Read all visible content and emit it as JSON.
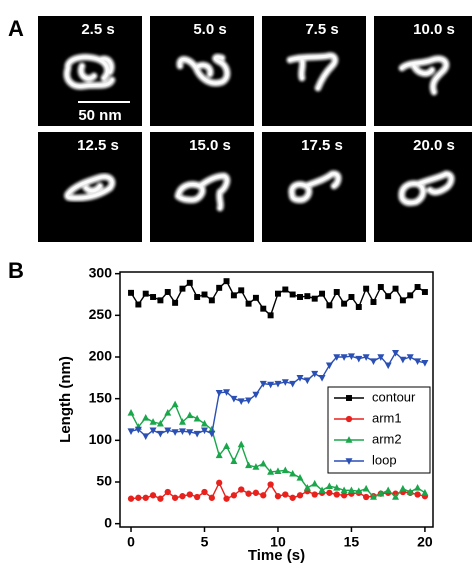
{
  "panels": {
    "a": {
      "label": "A",
      "frames": [
        "2.5 s",
        "5.0 s",
        "7.5 s",
        "10.0 s",
        "12.5 s",
        "15.0 s",
        "17.5 s",
        "20.0 s"
      ],
      "scale_bar": "50 nm"
    },
    "b": {
      "label": "B"
    }
  },
  "chart_data": {
    "type": "line",
    "x_label": "Time (s)",
    "y_label": "Length (nm)",
    "x": [
      0,
      0.5,
      1,
      1.5,
      2,
      2.5,
      3,
      3.5,
      4,
      4.5,
      5,
      5.5,
      6,
      6.5,
      7,
      7.5,
      8,
      8.5,
      9,
      9.5,
      10,
      10.5,
      11,
      11.5,
      12,
      12.5,
      13,
      13.5,
      14,
      14.5,
      15,
      15.5,
      16,
      16.5,
      17,
      17.5,
      18,
      18.5,
      19,
      19.5,
      20
    ],
    "series": [
      {
        "name": "contour",
        "color": "#000000",
        "marker": "square",
        "values": [
          277,
          263,
          276,
          272,
          268,
          278,
          265,
          282,
          289,
          272,
          275,
          268,
          283,
          291,
          274,
          280,
          264,
          271,
          258,
          250,
          276,
          281,
          275,
          272,
          273,
          270,
          276,
          262,
          278,
          264,
          272,
          260,
          282,
          266,
          284,
          273,
          282,
          268,
          274,
          284,
          278
        ]
      },
      {
        "name": "arm1",
        "color": "#e8211d",
        "marker": "circle",
        "values": [
          30,
          31,
          31,
          34,
          30,
          38,
          31,
          33,
          35,
          32,
          38,
          31,
          49,
          30,
          34,
          41,
          36,
          37,
          34,
          47,
          33,
          35,
          31,
          34,
          39,
          35,
          37,
          37,
          35,
          34,
          36,
          37,
          32,
          33,
          36,
          37,
          36,
          38,
          37,
          35,
          33
        ]
      },
      {
        "name": "arm2",
        "color": "#1aa64a",
        "marker": "triangle-up",
        "values": [
          133,
          116,
          127,
          122,
          120,
          133,
          143,
          122,
          130,
          126,
          120,
          113,
          82,
          93,
          75,
          95,
          70,
          68,
          72,
          62,
          63,
          64,
          60,
          55,
          43,
          48,
          40,
          45,
          43,
          40,
          40,
          39,
          42,
          32,
          36,
          40,
          32,
          42,
          38,
          43,
          37
        ]
      },
      {
        "name": "loop",
        "color": "#2a4fb5",
        "marker": "triangle-down",
        "values": [
          111,
          113,
          105,
          112,
          108,
          112,
          110,
          111,
          110,
          108,
          112,
          108,
          157,
          158,
          150,
          147,
          148,
          155,
          168,
          167,
          168,
          170,
          168,
          175,
          172,
          180,
          175,
          190,
          200,
          200,
          201,
          198,
          200,
          195,
          200,
          190,
          205,
          197,
          200,
          195,
          193
        ]
      }
    ],
    "xlim": [
      -0.75,
      20.55
    ],
    "ylim": [
      -4,
      302
    ],
    "xticks": [
      0,
      5,
      10,
      15,
      20
    ],
    "yticks": [
      0,
      50,
      100,
      150,
      200,
      250,
      300
    ],
    "legend": "right",
    "grid": false
  }
}
